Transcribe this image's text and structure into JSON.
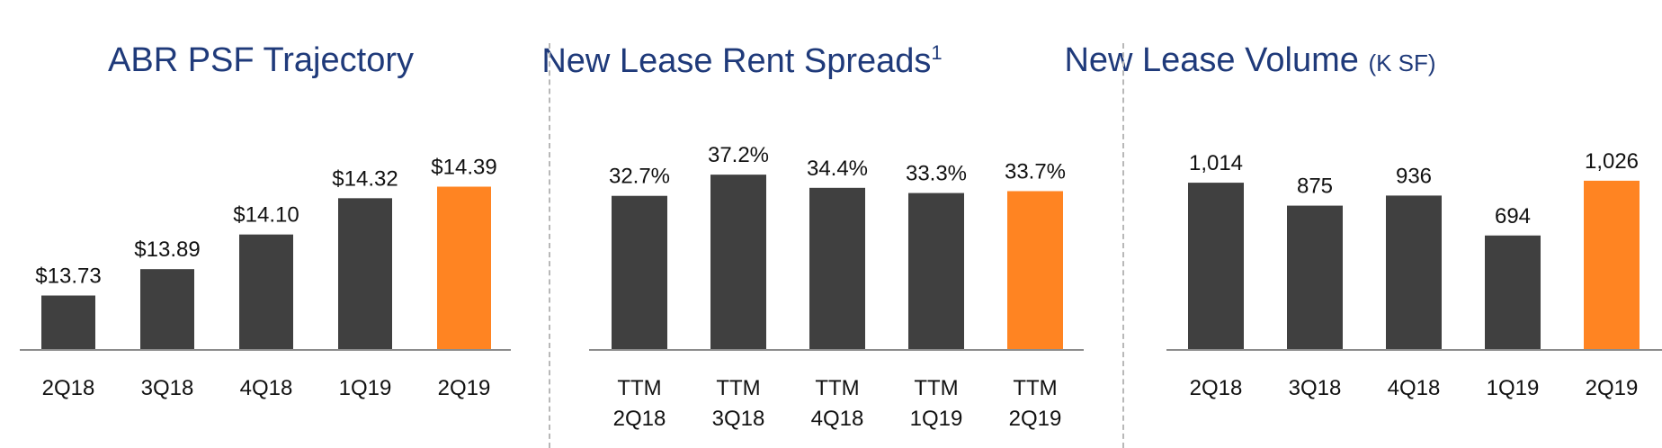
{
  "colors": {
    "bar": "#404040",
    "highlight": "#ff8422",
    "title": "#1f3a7a",
    "axis": "#8c8c8c",
    "text": "#111111"
  },
  "chart_data": [
    {
      "type": "bar",
      "title": "ABR PSF Trajectory",
      "categories": [
        "2Q18",
        "3Q18",
        "4Q18",
        "1Q19",
        "2Q19"
      ],
      "values": [
        13.73,
        13.89,
        14.1,
        14.32,
        14.39
      ],
      "data_labels": [
        "$13.73",
        "$13.89",
        "$14.10",
        "$14.32",
        "$14.39"
      ],
      "highlight_index": 4,
      "xlabel": "",
      "ylabel": "",
      "ylim": [
        13.4,
        14.6
      ]
    },
    {
      "type": "bar",
      "title": "New Lease Rent Spreads",
      "title_footnote": "1",
      "categories": [
        [
          "TTM",
          "2Q18"
        ],
        [
          "TTM",
          "3Q18"
        ],
        [
          "TTM",
          "4Q18"
        ],
        [
          "TTM",
          "1Q19"
        ],
        [
          "TTM",
          "2Q19"
        ]
      ],
      "values": [
        32.7,
        37.2,
        34.4,
        33.3,
        33.7
      ],
      "data_labels": [
        "32.7%",
        "37.2%",
        "34.4%",
        "33.3%",
        "33.7%"
      ],
      "highlight_index": 4,
      "xlabel": "",
      "ylabel": "",
      "ylim": [
        0,
        42
      ]
    },
    {
      "type": "bar",
      "title": "New Lease Volume",
      "title_unit": "(K SF)",
      "categories": [
        "2Q18",
        "3Q18",
        "4Q18",
        "1Q19",
        "2Q19"
      ],
      "values": [
        1014,
        875,
        936,
        694,
        1026
      ],
      "data_labels": [
        "1,014",
        "875",
        "936",
        "694",
        "1,026"
      ],
      "highlight_index": 4,
      "xlabel": "",
      "ylabel": "",
      "ylim": [
        0,
        1200
      ]
    }
  ]
}
